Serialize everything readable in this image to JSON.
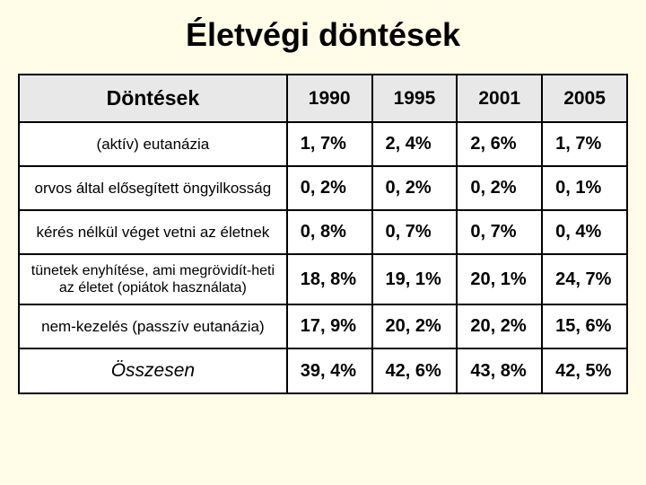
{
  "title": "Életvégi döntések",
  "table": {
    "type": "table",
    "background_color": "#ffffff",
    "border_color": "#000000",
    "header_bg": "#e8e8e8",
    "columns": [
      "Döntések",
      "1990",
      "1995",
      "2001",
      "2005"
    ],
    "rows": [
      {
        "label": "(aktív) eutanázia",
        "values": [
          "1, 7%",
          "2, 4%",
          "2, 6%",
          "1, 7%"
        ],
        "style": "normal"
      },
      {
        "label": "orvos által elősegített öngyilkosság",
        "values": [
          "0, 2%",
          "0, 2%",
          "0, 2%",
          "0, 1%"
        ],
        "style": "normal"
      },
      {
        "label": "kérés nélkül véget vetni az életnek",
        "values": [
          "0, 8%",
          "0, 7%",
          "0, 7%",
          "0, 4%"
        ],
        "style": "normal"
      },
      {
        "label": "tünetek enyhítése, ami megrövidít-heti az életet (opiátok használata)",
        "values": [
          "18, 8%",
          "19, 1%",
          "20, 1%",
          "24, 7%"
        ],
        "style": "small"
      },
      {
        "label": "nem-kezelés (passzív eutanázia)",
        "values": [
          "17, 9%",
          "20, 2%",
          "20, 2%",
          "15, 6%"
        ],
        "style": "normal"
      },
      {
        "label": "Összesen",
        "values": [
          "39, 4%",
          "42, 6%",
          "43, 8%",
          "42, 5%"
        ],
        "style": "italic"
      }
    ]
  }
}
